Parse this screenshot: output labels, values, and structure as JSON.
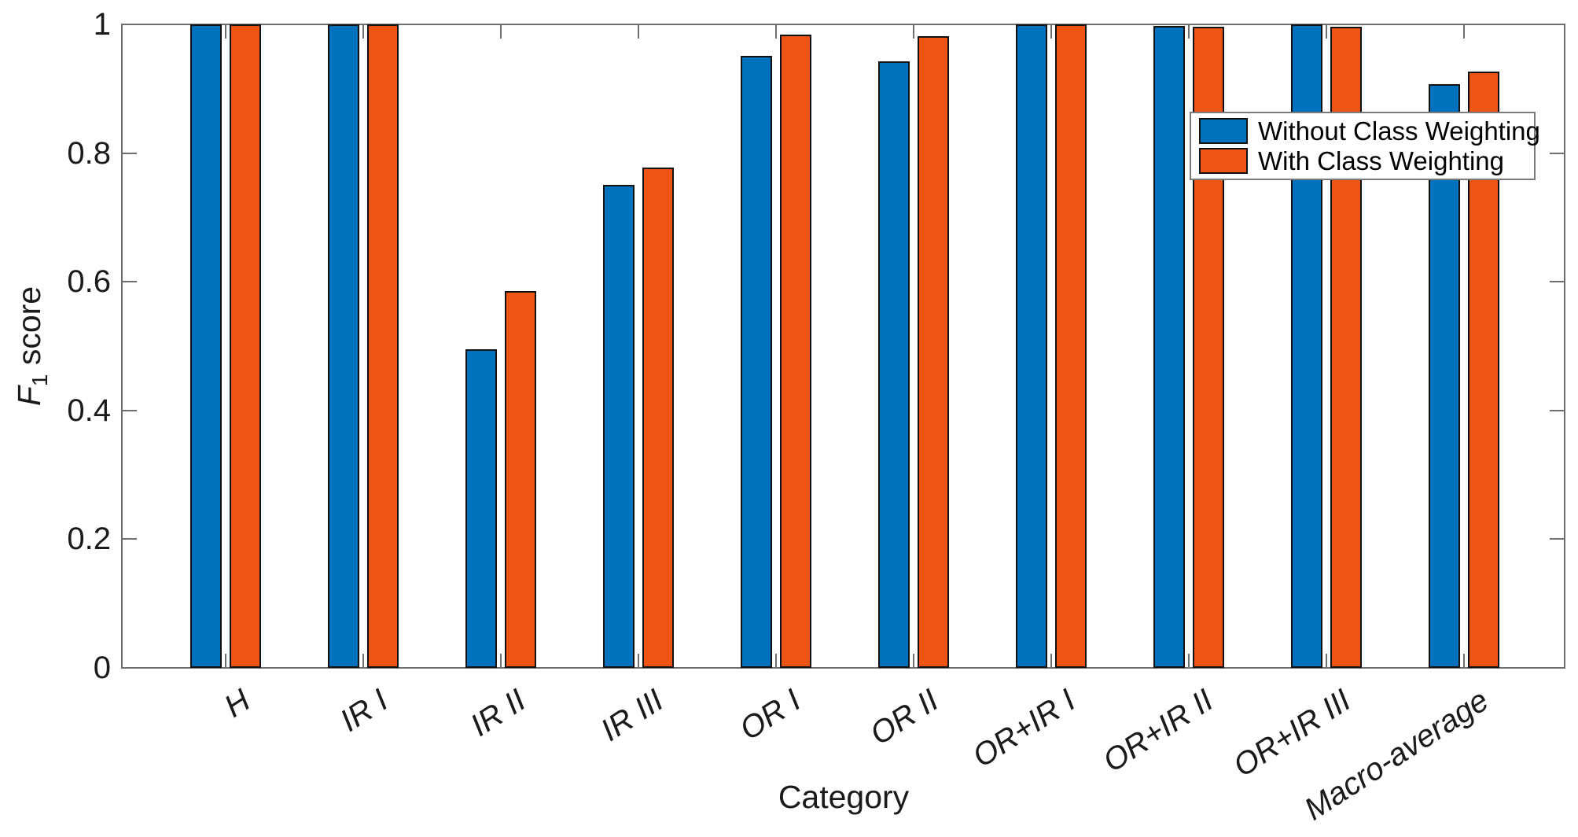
{
  "figure": {
    "background": "#ffffff",
    "axis_color": "#6e6e6e",
    "text_color": "#1a1a1a",
    "bar_edge_color": "#111111"
  },
  "chart_data": {
    "type": "bar",
    "title": "",
    "xlabel": "Category",
    "ylabel": "F1 score",
    "ylabel_parts": {
      "variable": "F",
      "subscript": "1",
      "text": " score"
    },
    "categories": [
      "H",
      "IR I",
      "IR II",
      "IR III",
      "OR I",
      "OR II",
      "OR+IR I",
      "OR+IR II",
      "OR+IR III",
      "Macro-average"
    ],
    "series": [
      {
        "name": "Without Class Weighting",
        "color": "#0072BD",
        "values": [
          1.0,
          1.0,
          0.495,
          0.75,
          0.951,
          0.943,
          1.0,
          0.998,
          1.0,
          0.907
        ]
      },
      {
        "name": "With Class Weighting",
        "color": "#EE5413",
        "values": [
          1.0,
          1.0,
          0.585,
          0.777,
          0.984,
          0.982,
          1.0,
          0.996,
          0.996,
          0.927
        ]
      }
    ],
    "ylim": [
      0,
      1
    ],
    "yticks": [
      0,
      0.2,
      0.4,
      0.6,
      0.8,
      1
    ],
    "ytick_labels": [
      "0",
      "0.2",
      "0.4",
      "0.6",
      "0.8",
      "1"
    ],
    "grid": false,
    "box": true,
    "tick_direction": "in",
    "legend_position": "inside-upper-right",
    "legend_items": [
      "Without Class Weighting",
      "With Class Weighting"
    ]
  }
}
